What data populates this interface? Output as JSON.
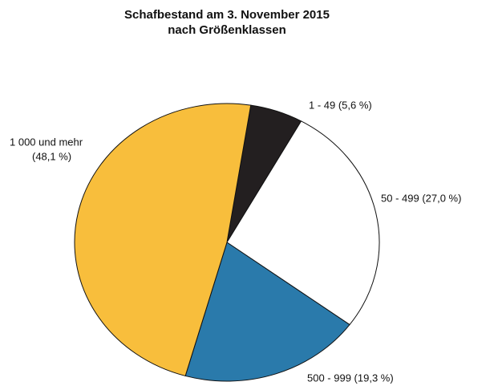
{
  "chart_data": {
    "type": "pie",
    "title": "Schafbestand am 3. November 2015",
    "subtitle": "nach Größenklassen",
    "values": [
      5.6,
      27.0,
      19.3,
      48.1
    ],
    "value_labels": [
      [
        "1 - 49 (5,6 %)"
      ],
      [
        "50 - 499 (27,0 %)"
      ],
      [
        "500 - 999 (19,3 %)"
      ],
      [
        "1 000 und mehr",
        "(48,1 %)"
      ]
    ],
    "colors": [
      "#231f20",
      "#ffffff",
      "#2a7aab",
      "#f8be3c"
    ]
  }
}
